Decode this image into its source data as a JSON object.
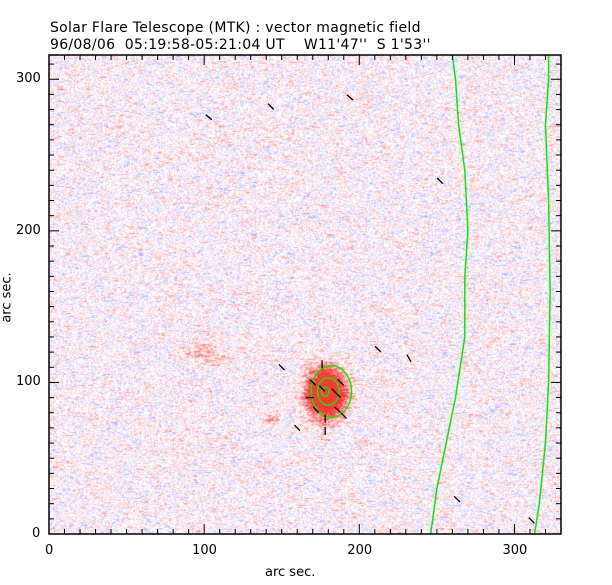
{
  "chart_data": {
    "type": "heatmap",
    "title": "Solar Flare Telescope (MTK) : vector magnetic field",
    "subtitle": "96/08/06  05:19:58-05:21:04 UT    W11'47''  S 1'53''",
    "xlabel": "arc sec.",
    "ylabel": "arc sec.",
    "xlim": [
      0,
      330
    ],
    "ylim": [
      0,
      316
    ],
    "xticks": [
      0,
      100,
      200,
      300
    ],
    "yticks": [
      0,
      100,
      200,
      300
    ],
    "colors": {
      "positive": "#ff6060",
      "negative": "#7070ff",
      "contour": "#00ee00",
      "vector": "#000000"
    },
    "features": [
      {
        "name": "sunspot",
        "x": 178,
        "y": 93,
        "strength": 1.0
      },
      {
        "name": "plage",
        "x": 100,
        "y": 120,
        "strength": 0.35
      },
      {
        "name": "pore",
        "x": 143,
        "y": 76,
        "strength": 0.45
      }
    ],
    "contours": [
      {
        "name": "limb-left",
        "points": [
          [
            246,
            0
          ],
          [
            250,
            30
          ],
          [
            253,
            45
          ],
          [
            262,
            90
          ],
          [
            268,
            130
          ],
          [
            268,
            170
          ],
          [
            270,
            200
          ],
          [
            268,
            240
          ],
          [
            264,
            270
          ],
          [
            262,
            300
          ],
          [
            260,
            316
          ]
        ]
      },
      {
        "name": "limb-right",
        "points": [
          [
            313,
            0
          ],
          [
            316,
            20
          ],
          [
            320,
            60
          ],
          [
            322,
            100
          ],
          [
            323,
            160
          ],
          [
            322,
            220
          ],
          [
            320,
            270
          ],
          [
            322,
            300
          ],
          [
            322,
            316
          ]
        ]
      },
      {
        "name": "umbra-outer",
        "ellipse": [
          182,
          94,
          13,
          17
        ]
      },
      {
        "name": "umbra-middle",
        "ellipse": [
          180,
          94,
          7,
          9
        ]
      },
      {
        "name": "umbra-inner",
        "ellipse": [
          178,
          94,
          2.5,
          3
        ]
      }
    ],
    "vectors": [
      [
        103,
        275,
        40
      ],
      [
        143,
        282,
        45
      ],
      [
        194,
        288,
        40
      ],
      [
        252,
        233,
        45
      ],
      [
        212,
        122,
        45
      ],
      [
        232,
        116,
        60
      ],
      [
        150,
        110,
        45
      ],
      [
        160,
        70,
        45
      ],
      [
        263,
        23,
        45
      ],
      [
        311,
        9,
        45
      ],
      [
        176,
        112,
        90
      ],
      [
        170,
        100,
        45
      ],
      [
        188,
        100,
        45
      ],
      [
        186,
        92,
        45
      ],
      [
        168,
        90,
        0
      ],
      [
        172,
        82,
        45
      ],
      [
        178,
        76,
        90
      ],
      [
        186,
        82,
        45
      ],
      [
        190,
        78,
        45
      ],
      [
        178,
        68,
        90
      ],
      [
        184,
        94,
        45
      ],
      [
        176,
        96,
        45
      ]
    ]
  }
}
